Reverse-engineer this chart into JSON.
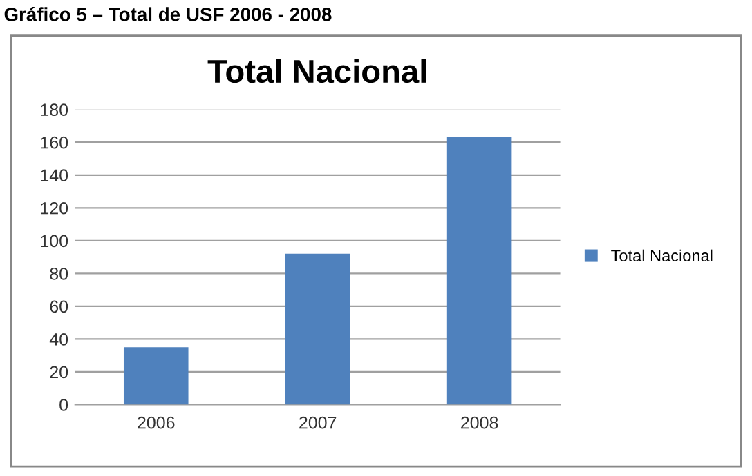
{
  "chart_data": {
    "type": "bar",
    "title": "Total Nacional",
    "annotations": [
      "Gráfico 5 – Total de USF 2006 - 2008"
    ],
    "categories": [
      "2006",
      "2007",
      "2008"
    ],
    "series": [
      {
        "name": "Total Nacional",
        "color": "#4f81bd",
        "values": [
          35,
          92,
          163
        ]
      }
    ],
    "ylim": [
      0,
      180
    ],
    "yticks": [
      0,
      20,
      40,
      60,
      80,
      100,
      120,
      140,
      160,
      180
    ],
    "grid": "y",
    "legend": "right"
  }
}
